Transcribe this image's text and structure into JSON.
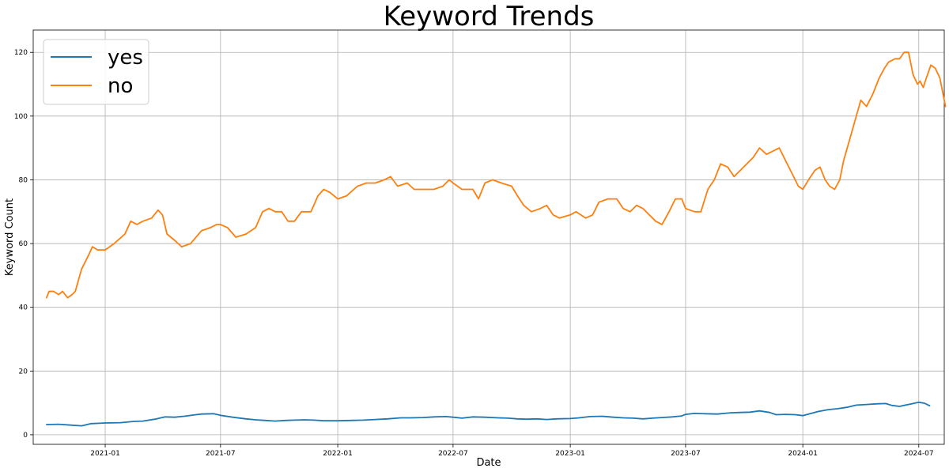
{
  "chart_data": {
    "type": "line",
    "title": "Keyword Trends",
    "xlabel": "Date",
    "ylabel": "Keyword Count",
    "xlim": [
      "2020-09-10",
      "2024-08-10"
    ],
    "ylim": [
      -3,
      127
    ],
    "x_ticks": [
      "2021-01-01",
      "2021-07-01",
      "2022-01-01",
      "2022-07-01",
      "2023-01-01",
      "2023-07-01",
      "2024-01-01",
      "2024-07-01"
    ],
    "x_tick_labels": [
      "2021-01",
      "2021-07",
      "2022-01",
      "2022-07",
      "2023-01",
      "2023-07",
      "2024-01",
      "2024-07"
    ],
    "y_ticks": [
      0,
      20,
      40,
      60,
      80,
      100,
      120
    ],
    "y_tick_labels": [
      "0",
      "20",
      "40",
      "60",
      "80",
      "100",
      "120"
    ],
    "grid": true,
    "legend_position": "top-left",
    "series": [
      {
        "name": "yes",
        "color": "#1f77b4",
        "points": [
          [
            "2020-10-01",
            3.2
          ],
          [
            "2020-10-20",
            3.3
          ],
          [
            "2020-11-10",
            3.0
          ],
          [
            "2020-11-25",
            2.8
          ],
          [
            "2020-12-10",
            3.5
          ],
          [
            "2021-01-01",
            3.7
          ],
          [
            "2021-01-25",
            3.8
          ],
          [
            "2021-02-15",
            4.2
          ],
          [
            "2021-03-01",
            4.3
          ],
          [
            "2021-03-20",
            4.9
          ],
          [
            "2021-04-05",
            5.6
          ],
          [
            "2021-04-20",
            5.5
          ],
          [
            "2021-05-05",
            5.8
          ],
          [
            "2021-05-20",
            6.2
          ],
          [
            "2021-06-01",
            6.5
          ],
          [
            "2021-06-20",
            6.6
          ],
          [
            "2021-07-01",
            6.1
          ],
          [
            "2021-07-20",
            5.5
          ],
          [
            "2021-08-10",
            5.0
          ],
          [
            "2021-08-25",
            4.7
          ],
          [
            "2021-09-10",
            4.5
          ],
          [
            "2021-09-25",
            4.3
          ],
          [
            "2021-10-10",
            4.5
          ],
          [
            "2021-10-25",
            4.6
          ],
          [
            "2021-11-10",
            4.7
          ],
          [
            "2021-11-25",
            4.6
          ],
          [
            "2021-12-10",
            4.4
          ],
          [
            "2022-01-01",
            4.4
          ],
          [
            "2022-01-20",
            4.5
          ],
          [
            "2022-02-10",
            4.6
          ],
          [
            "2022-03-01",
            4.8
          ],
          [
            "2022-03-20",
            5.0
          ],
          [
            "2022-04-10",
            5.3
          ],
          [
            "2022-04-25",
            5.3
          ],
          [
            "2022-05-15",
            5.4
          ],
          [
            "2022-06-01",
            5.6
          ],
          [
            "2022-06-20",
            5.7
          ],
          [
            "2022-07-01",
            5.5
          ],
          [
            "2022-07-15",
            5.2
          ],
          [
            "2022-08-01",
            5.6
          ],
          [
            "2022-08-20",
            5.5
          ],
          [
            "2022-09-10",
            5.3
          ],
          [
            "2022-09-25",
            5.2
          ],
          [
            "2022-10-10",
            5.0
          ],
          [
            "2022-10-25",
            4.9
          ],
          [
            "2022-11-10",
            5.0
          ],
          [
            "2022-11-25",
            4.8
          ],
          [
            "2022-12-10",
            5.0
          ],
          [
            "2023-01-01",
            5.1
          ],
          [
            "2023-01-15",
            5.3
          ],
          [
            "2023-02-01",
            5.7
          ],
          [
            "2023-02-20",
            5.8
          ],
          [
            "2023-03-10",
            5.5
          ],
          [
            "2023-03-25",
            5.3
          ],
          [
            "2023-04-10",
            5.2
          ],
          [
            "2023-04-25",
            5.0
          ],
          [
            "2023-05-10",
            5.2
          ],
          [
            "2023-05-25",
            5.4
          ],
          [
            "2023-06-10",
            5.6
          ],
          [
            "2023-06-25",
            5.9
          ],
          [
            "2023-07-01",
            6.4
          ],
          [
            "2023-07-15",
            6.7
          ],
          [
            "2023-08-01",
            6.6
          ],
          [
            "2023-08-20",
            6.5
          ],
          [
            "2023-09-10",
            6.9
          ],
          [
            "2023-09-25",
            7.0
          ],
          [
            "2023-10-10",
            7.1
          ],
          [
            "2023-10-25",
            7.5
          ],
          [
            "2023-11-10",
            7.0
          ],
          [
            "2023-11-20",
            6.3
          ],
          [
            "2023-12-05",
            6.4
          ],
          [
            "2023-12-20",
            6.3
          ],
          [
            "2024-01-01",
            6.0
          ],
          [
            "2024-01-10",
            6.5
          ],
          [
            "2024-01-25",
            7.3
          ],
          [
            "2024-02-10",
            7.9
          ],
          [
            "2024-02-25",
            8.2
          ],
          [
            "2024-03-10",
            8.6
          ],
          [
            "2024-03-25",
            9.3
          ],
          [
            "2024-04-10",
            9.5
          ],
          [
            "2024-04-25",
            9.7
          ],
          [
            "2024-05-10",
            9.8
          ],
          [
            "2024-05-20",
            9.2
          ],
          [
            "2024-06-01",
            8.9
          ],
          [
            "2024-06-10",
            9.3
          ],
          [
            "2024-06-20",
            9.7
          ],
          [
            "2024-07-01",
            10.2
          ],
          [
            "2024-07-10",
            9.9
          ],
          [
            "2024-07-18",
            9.1
          ]
        ]
      },
      {
        "name": "no",
        "color": "#ff7f0e",
        "points": [
          [
            "2020-10-01",
            43
          ],
          [
            "2020-10-05",
            45
          ],
          [
            "2020-10-12",
            45
          ],
          [
            "2020-10-20",
            44
          ],
          [
            "2020-10-26",
            45
          ],
          [
            "2020-11-03",
            43
          ],
          [
            "2020-11-10",
            44
          ],
          [
            "2020-11-15",
            45
          ],
          [
            "2020-11-25",
            52
          ],
          [
            "2020-12-05",
            56
          ],
          [
            "2020-12-12",
            59
          ],
          [
            "2020-12-20",
            58
          ],
          [
            "2021-01-01",
            58
          ],
          [
            "2021-01-15",
            60
          ],
          [
            "2021-02-01",
            63
          ],
          [
            "2021-02-10",
            67
          ],
          [
            "2021-02-20",
            66
          ],
          [
            "2021-03-01",
            67
          ],
          [
            "2021-03-15",
            68
          ],
          [
            "2021-03-25",
            70.5
          ],
          [
            "2021-04-01",
            69
          ],
          [
            "2021-04-08",
            63
          ],
          [
            "2021-04-20",
            61
          ],
          [
            "2021-05-01",
            59
          ],
          [
            "2021-05-15",
            60
          ],
          [
            "2021-06-01",
            64
          ],
          [
            "2021-06-15",
            65
          ],
          [
            "2021-06-25",
            66
          ],
          [
            "2021-07-01",
            66
          ],
          [
            "2021-07-12",
            65
          ],
          [
            "2021-07-25",
            62
          ],
          [
            "2021-08-10",
            63
          ],
          [
            "2021-08-25",
            65
          ],
          [
            "2021-09-05",
            70
          ],
          [
            "2021-09-15",
            71
          ],
          [
            "2021-09-25",
            70
          ],
          [
            "2021-10-05",
            70
          ],
          [
            "2021-10-15",
            67
          ],
          [
            "2021-10-25",
            67
          ],
          [
            "2021-11-05",
            70
          ],
          [
            "2021-11-20",
            70
          ],
          [
            "2021-12-01",
            75
          ],
          [
            "2021-12-10",
            77
          ],
          [
            "2021-12-20",
            76
          ],
          [
            "2022-01-01",
            74
          ],
          [
            "2022-01-15",
            75
          ],
          [
            "2022-02-01",
            78
          ],
          [
            "2022-02-15",
            79
          ],
          [
            "2022-03-01",
            79
          ],
          [
            "2022-03-15",
            80
          ],
          [
            "2022-03-25",
            81
          ],
          [
            "2022-04-05",
            78
          ],
          [
            "2022-04-20",
            79
          ],
          [
            "2022-05-01",
            77
          ],
          [
            "2022-05-15",
            77
          ],
          [
            "2022-06-01",
            77
          ],
          [
            "2022-06-15",
            78
          ],
          [
            "2022-06-25",
            80
          ],
          [
            "2022-07-01",
            79
          ],
          [
            "2022-07-15",
            77
          ],
          [
            "2022-08-01",
            77
          ],
          [
            "2022-08-10",
            74
          ],
          [
            "2022-08-20",
            79
          ],
          [
            "2022-09-01",
            80
          ],
          [
            "2022-09-15",
            79
          ],
          [
            "2022-10-01",
            78
          ],
          [
            "2022-10-10",
            75
          ],
          [
            "2022-10-20",
            72
          ],
          [
            "2022-11-01",
            70
          ],
          [
            "2022-11-15",
            71
          ],
          [
            "2022-11-25",
            72
          ],
          [
            "2022-12-05",
            69
          ],
          [
            "2022-12-15",
            68
          ],
          [
            "2023-01-01",
            69
          ],
          [
            "2023-01-10",
            70
          ],
          [
            "2023-01-25",
            68
          ],
          [
            "2023-02-05",
            69
          ],
          [
            "2023-02-15",
            73
          ],
          [
            "2023-03-01",
            74
          ],
          [
            "2023-03-15",
            74
          ],
          [
            "2023-03-25",
            71
          ],
          [
            "2023-04-05",
            70
          ],
          [
            "2023-04-15",
            72
          ],
          [
            "2023-04-25",
            71
          ],
          [
            "2023-05-05",
            69
          ],
          [
            "2023-05-15",
            67
          ],
          [
            "2023-05-25",
            66
          ],
          [
            "2023-06-05",
            70
          ],
          [
            "2023-06-15",
            74
          ],
          [
            "2023-06-25",
            74
          ],
          [
            "2023-07-01",
            71
          ],
          [
            "2023-07-15",
            70
          ],
          [
            "2023-07-25",
            70
          ],
          [
            "2023-08-05",
            77
          ],
          [
            "2023-08-15",
            80
          ],
          [
            "2023-08-25",
            85
          ],
          [
            "2023-09-05",
            84
          ],
          [
            "2023-09-15",
            81
          ],
          [
            "2023-09-25",
            83
          ],
          [
            "2023-10-05",
            85
          ],
          [
            "2023-10-15",
            87
          ],
          [
            "2023-10-25",
            90
          ],
          [
            "2023-11-05",
            88
          ],
          [
            "2023-11-15",
            89
          ],
          [
            "2023-11-25",
            90
          ],
          [
            "2023-12-05",
            86
          ],
          [
            "2023-12-15",
            82
          ],
          [
            "2023-12-25",
            78
          ],
          [
            "2024-01-01",
            77
          ],
          [
            "2024-01-10",
            80
          ],
          [
            "2024-01-20",
            83
          ],
          [
            "2024-01-28",
            84
          ],
          [
            "2024-02-05",
            80
          ],
          [
            "2024-02-12",
            78
          ],
          [
            "2024-02-20",
            77
          ],
          [
            "2024-02-28",
            80
          ],
          [
            "2024-03-05",
            86
          ],
          [
            "2024-03-15",
            93
          ],
          [
            "2024-03-25",
            100
          ],
          [
            "2024-04-01",
            105
          ],
          [
            "2024-04-10",
            103
          ],
          [
            "2024-04-20",
            107
          ],
          [
            "2024-04-30",
            112
          ],
          [
            "2024-05-08",
            115
          ],
          [
            "2024-05-15",
            117
          ],
          [
            "2024-05-25",
            118
          ],
          [
            "2024-06-01",
            118
          ],
          [
            "2024-06-08",
            120
          ],
          [
            "2024-06-15",
            120
          ],
          [
            "2024-06-22",
            113
          ],
          [
            "2024-06-29",
            110
          ],
          [
            "2024-07-03",
            111
          ],
          [
            "2024-07-08",
            109
          ],
          [
            "2024-07-13",
            112
          ],
          [
            "2024-07-20",
            116
          ],
          [
            "2024-07-27",
            115
          ],
          [
            "2024-08-03",
            112
          ],
          [
            "2024-08-08",
            107
          ],
          [
            "2024-08-12",
            103
          ]
        ]
      }
    ]
  }
}
